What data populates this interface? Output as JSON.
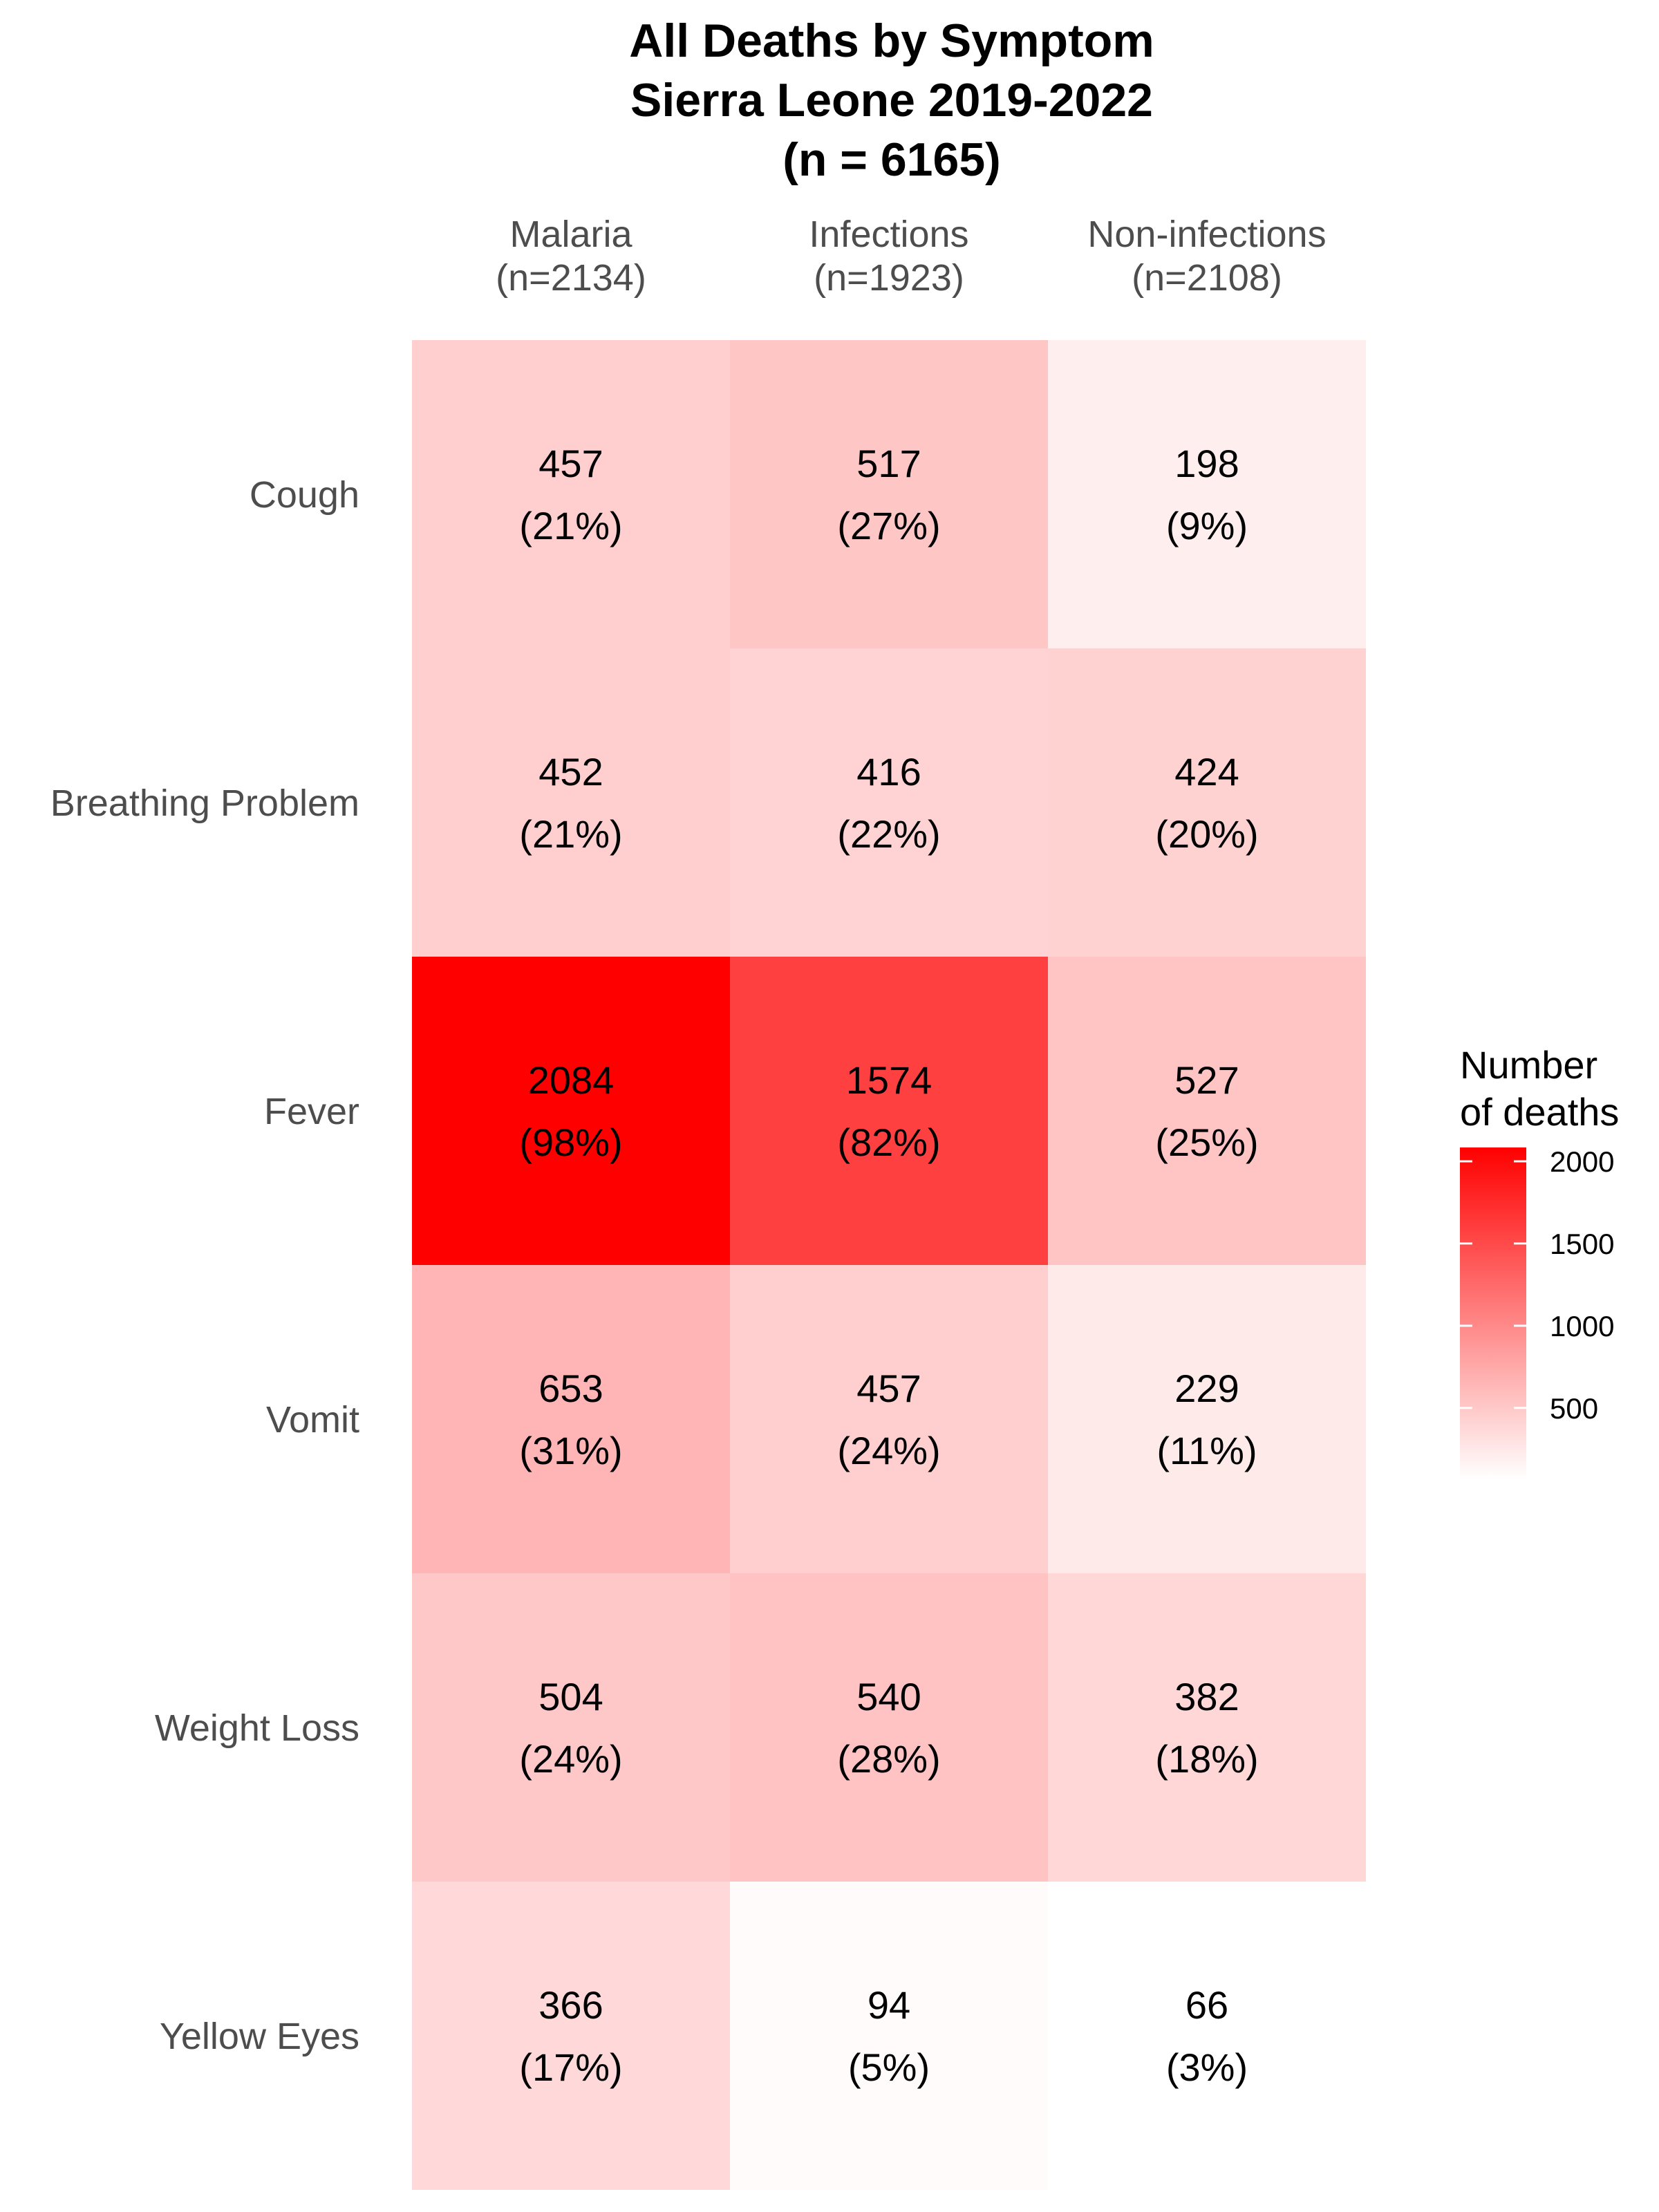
{
  "chart_data": {
    "type": "heatmap",
    "title": [
      "All Deaths by Symptom",
      "Sierra Leone 2019-2022",
      "(n = 6165)"
    ],
    "columns": [
      {
        "name": "Malaria",
        "n_label": "(n=2134)"
      },
      {
        "name": "Infections",
        "n_label": "(n=1923)"
      },
      {
        "name": "Non-infections",
        "n_label": "(n=2108)"
      }
    ],
    "rows": [
      "Cough",
      "Breathing Problem",
      "Fever",
      "Vomit",
      "Weight Loss",
      "Yellow Eyes"
    ],
    "values": [
      [
        457,
        517,
        198
      ],
      [
        452,
        416,
        424
      ],
      [
        2084,
        1574,
        527
      ],
      [
        653,
        457,
        229
      ],
      [
        504,
        540,
        382
      ],
      [
        366,
        94,
        66
      ]
    ],
    "percent_labels": [
      [
        "(21%)",
        "(27%)",
        "(9%)"
      ],
      [
        "(21%)",
        "(22%)",
        "(20%)"
      ],
      [
        "(98%)",
        "(82%)",
        "(25%)"
      ],
      [
        "(31%)",
        "(24%)",
        "(11%)"
      ],
      [
        "(24%)",
        "(28%)",
        "(18%)"
      ],
      [
        "(17%)",
        "(5%)",
        "(3%)"
      ]
    ],
    "color_scale": {
      "low": "#ffffff",
      "high": "#ff0000",
      "min": 66,
      "max": 2084
    },
    "legend": {
      "title": [
        "Number",
        "of deaths"
      ],
      "ticks": [
        500,
        1000,
        1500,
        2000
      ],
      "placement": "right"
    }
  }
}
